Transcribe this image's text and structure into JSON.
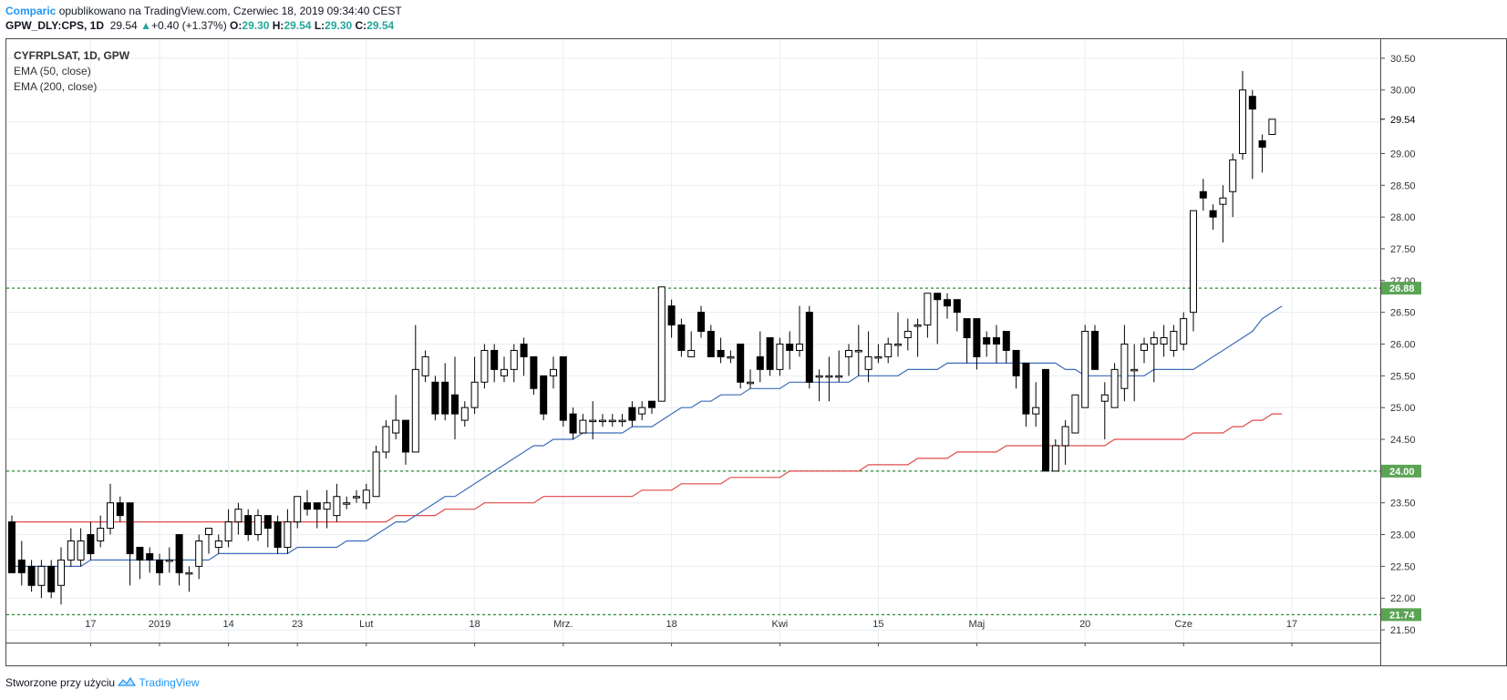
{
  "header": {
    "brand": "Comparic",
    "published": "opublikowano na TradingView.com, Czerwiec 18, 2019 09:34:40 CEST",
    "symbol": "GPW_DLY:CPS, 1D",
    "last": "29.54",
    "change_arrow": "▲",
    "change": "+0.40 (+1.37%)",
    "o_label": "O:",
    "o_value": "29.30",
    "h_label": "H:",
    "h_value": "29.54",
    "l_label": "L:",
    "l_value": "29.30",
    "c_label": "C:",
    "c_value": "29.54"
  },
  "legend": {
    "symbol": "CYFRPLSAT, 1D, GPW",
    "ema50": "EMA (50, close)",
    "ema200": "EMA (200, close)"
  },
  "footer": {
    "text": "Stworzone przy użyciu",
    "brand": "TradingView"
  },
  "colors": {
    "ema50": "#3d6cb9",
    "ema200": "#e04b4b",
    "level": "#2e8b2e",
    "level_badge": "#5aa454",
    "up_fill": "#ffffff",
    "down_fill": "#000000",
    "grid": "#e8eef3"
  },
  "chart_data": {
    "type": "candlestick",
    "ylim": [
      21.3,
      30.8
    ],
    "y_ticks": [
      21.5,
      22.0,
      22.5,
      23.0,
      23.5,
      24.0,
      24.5,
      25.0,
      25.5,
      26.0,
      26.5,
      27.0,
      27.5,
      28.0,
      28.5,
      29.0,
      29.5,
      30.0,
      30.5
    ],
    "x_ticks": [
      {
        "label": "17",
        "bar": 8
      },
      {
        "label": "2019",
        "bar": 15
      },
      {
        "label": "14",
        "bar": 22
      },
      {
        "label": "23",
        "bar": 29
      },
      {
        "label": "Lut",
        "bar": 36
      },
      {
        "label": "18",
        "bar": 47
      },
      {
        "label": "Mrz.",
        "bar": 56
      },
      {
        "label": "18",
        "bar": 67
      },
      {
        "label": "Kwi",
        "bar": 78
      },
      {
        "label": "15",
        "bar": 88
      },
      {
        "label": "Maj",
        "bar": 98
      },
      {
        "label": "20",
        "bar": 109
      },
      {
        "label": "Cze",
        "bar": 119
      },
      {
        "label": "17",
        "bar": 130
      }
    ],
    "last_price": 29.54,
    "levels": [
      26.88,
      24.0,
      21.74
    ],
    "candles": [
      [
        23.2,
        22.4,
        22.4,
        23.3
      ],
      [
        22.6,
        22.4,
        22.2,
        22.9
      ],
      [
        22.5,
        22.2,
        22.1,
        22.6
      ],
      [
        22.2,
        22.5,
        22.0,
        22.6
      ],
      [
        22.5,
        22.1,
        22.0,
        22.6
      ],
      [
        22.2,
        22.6,
        21.9,
        22.8
      ],
      [
        22.6,
        22.9,
        22.5,
        23.1
      ],
      [
        22.6,
        22.9,
        22.5,
        23.1
      ],
      [
        23.0,
        22.7,
        22.6,
        23.2
      ],
      [
        22.9,
        23.1,
        22.8,
        23.3
      ],
      [
        23.1,
        23.5,
        23.0,
        23.8
      ],
      [
        23.5,
        23.3,
        23.2,
        23.6
      ],
      [
        23.5,
        22.7,
        22.2,
        23.5
      ],
      [
        22.8,
        22.6,
        22.3,
        22.8
      ],
      [
        22.7,
        22.6,
        22.4,
        22.8
      ],
      [
        22.6,
        22.4,
        22.2,
        22.7
      ],
      [
        22.6,
        22.6,
        22.4,
        22.8
      ],
      [
        23.0,
        22.4,
        22.2,
        23.0
      ],
      [
        22.4,
        22.4,
        22.1,
        22.5
      ],
      [
        22.5,
        22.9,
        22.3,
        23.0
      ],
      [
        23.0,
        23.1,
        22.7,
        23.1
      ],
      [
        22.8,
        22.9,
        22.7,
        23.0
      ],
      [
        22.9,
        23.2,
        22.8,
        23.4
      ],
      [
        23.2,
        23.4,
        23.0,
        23.5
      ],
      [
        23.3,
        23.0,
        22.9,
        23.4
      ],
      [
        23.0,
        23.3,
        22.9,
        23.4
      ],
      [
        23.3,
        23.1,
        22.8,
        23.3
      ],
      [
        23.2,
        22.8,
        22.7,
        23.3
      ],
      [
        22.8,
        23.2,
        22.7,
        23.4
      ],
      [
        23.2,
        23.6,
        23.1,
        23.6
      ],
      [
        23.5,
        23.4,
        23.3,
        23.7
      ],
      [
        23.5,
        23.4,
        23.1,
        23.5
      ],
      [
        23.4,
        23.5,
        23.1,
        23.7
      ],
      [
        23.3,
        23.6,
        23.2,
        23.8
      ],
      [
        23.5,
        23.5,
        23.4,
        23.6
      ],
      [
        23.6,
        23.6,
        23.5,
        23.7
      ],
      [
        23.5,
        23.7,
        23.4,
        23.8
      ],
      [
        23.6,
        24.3,
        23.6,
        24.4
      ],
      [
        24.3,
        24.7,
        24.2,
        24.8
      ],
      [
        24.6,
        24.8,
        24.5,
        25.2
      ],
      [
        24.8,
        24.3,
        24.1,
        24.8
      ],
      [
        24.3,
        25.6,
        24.3,
        26.3
      ],
      [
        25.5,
        25.8,
        25.4,
        25.9
      ],
      [
        25.4,
        24.9,
        24.8,
        25.5
      ],
      [
        25.4,
        24.9,
        24.8,
        25.7
      ],
      [
        25.2,
        24.9,
        24.5,
        25.8
      ],
      [
        24.8,
        25.0,
        24.7,
        25.1
      ],
      [
        25.0,
        25.4,
        24.9,
        25.8
      ],
      [
        25.4,
        25.9,
        25.3,
        26.0
      ],
      [
        25.9,
        25.6,
        25.4,
        26.0
      ],
      [
        25.5,
        25.6,
        25.4,
        25.8
      ],
      [
        25.6,
        25.9,
        25.4,
        26.0
      ],
      [
        26.0,
        25.8,
        25.5,
        26.1
      ],
      [
        25.8,
        25.3,
        25.2,
        25.8
      ],
      [
        25.5,
        24.9,
        24.8,
        25.5
      ],
      [
        25.5,
        25.6,
        25.3,
        25.8
      ],
      [
        25.8,
        24.8,
        24.7,
        25.8
      ],
      [
        24.9,
        24.6,
        24.5,
        25.0
      ],
      [
        24.6,
        24.8,
        24.6,
        24.9
      ],
      [
        24.8,
        24.8,
        24.5,
        25.1
      ],
      [
        24.8,
        24.8,
        24.7,
        24.9
      ],
      [
        24.8,
        24.8,
        24.7,
        24.9
      ],
      [
        24.8,
        24.8,
        24.7,
        24.9
      ],
      [
        25.0,
        24.8,
        24.7,
        25.1
      ],
      [
        24.9,
        25.0,
        24.8,
        25.1
      ],
      [
        25.1,
        25.0,
        24.9,
        25.1
      ],
      [
        25.1,
        26.9,
        25.1,
        26.9
      ],
      [
        26.6,
        26.3,
        26.1,
        26.7
      ],
      [
        26.3,
        25.9,
        25.8,
        26.4
      ],
      [
        25.8,
        25.9,
        25.8,
        26.2
      ],
      [
        26.5,
        26.2,
        26.1,
        26.6
      ],
      [
        26.2,
        25.8,
        25.8,
        26.3
      ],
      [
        25.9,
        25.8,
        25.7,
        26.1
      ],
      [
        25.8,
        25.8,
        25.7,
        25.9
      ],
      [
        26.0,
        25.4,
        25.3,
        26.0
      ],
      [
        25.4,
        25.4,
        25.3,
        25.6
      ],
      [
        25.8,
        25.6,
        25.4,
        26.2
      ],
      [
        26.1,
        25.6,
        25.5,
        26.1
      ],
      [
        25.6,
        26.0,
        25.5,
        26.1
      ],
      [
        26.0,
        25.9,
        25.6,
        26.2
      ],
      [
        25.9,
        26.0,
        25.8,
        26.6
      ],
      [
        26.5,
        25.4,
        25.3,
        26.6
      ],
      [
        25.5,
        25.5,
        25.1,
        25.6
      ],
      [
        25.5,
        25.5,
        25.1,
        25.8
      ],
      [
        25.5,
        25.5,
        25.4,
        25.9
      ],
      [
        25.8,
        25.9,
        25.5,
        26.0
      ],
      [
        25.9,
        25.9,
        25.5,
        26.3
      ],
      [
        25.6,
        25.8,
        25.4,
        26.2
      ],
      [
        25.8,
        25.8,
        25.7,
        26.0
      ],
      [
        25.8,
        26.0,
        25.7,
        26.1
      ],
      [
        26.0,
        26.0,
        25.8,
        26.5
      ],
      [
        26.1,
        26.2,
        25.9,
        26.4
      ],
      [
        26.3,
        26.3,
        25.8,
        26.4
      ],
      [
        26.3,
        26.8,
        26.1,
        26.8
      ],
      [
        26.8,
        26.7,
        26.0,
        26.8
      ],
      [
        26.7,
        26.6,
        26.4,
        26.8
      ],
      [
        26.7,
        26.5,
        26.2,
        26.7
      ],
      [
        26.4,
        26.1,
        25.7,
        26.4
      ],
      [
        26.4,
        25.8,
        25.6,
        26.4
      ],
      [
        26.1,
        26.0,
        25.8,
        26.2
      ],
      [
        26.1,
        26.0,
        25.7,
        26.3
      ],
      [
        26.2,
        25.9,
        25.7,
        26.2
      ],
      [
        25.9,
        25.5,
        25.3,
        25.9
      ],
      [
        25.7,
        24.9,
        24.7,
        25.7
      ],
      [
        24.9,
        25.0,
        24.7,
        25.4
      ],
      [
        25.6,
        24.0,
        24.0,
        25.6
      ],
      [
        24.0,
        24.4,
        24.0,
        24.5
      ],
      [
        24.4,
        24.7,
        24.1,
        24.8
      ],
      [
        24.6,
        25.2,
        24.6,
        25.2
      ],
      [
        25.0,
        26.2,
        25.0,
        26.3
      ],
      [
        26.2,
        25.6,
        25.6,
        26.3
      ],
      [
        25.1,
        25.2,
        24.5,
        25.4
      ],
      [
        25.0,
        25.6,
        25.0,
        25.7
      ],
      [
        25.3,
        26.0,
        25.1,
        26.3
      ],
      [
        25.6,
        25.6,
        25.1,
        26.0
      ],
      [
        25.9,
        26.0,
        25.7,
        26.1
      ],
      [
        26.0,
        26.1,
        25.4,
        26.2
      ],
      [
        26.0,
        26.1,
        25.8,
        26.3
      ],
      [
        25.9,
        26.2,
        25.8,
        26.3
      ],
      [
        26.0,
        26.4,
        25.9,
        26.5
      ],
      [
        26.5,
        28.1,
        26.2,
        28.1
      ],
      [
        28.4,
        28.3,
        28.1,
        28.6
      ],
      [
        28.1,
        28.0,
        27.8,
        28.2
      ],
      [
        28.2,
        28.3,
        27.6,
        28.5
      ],
      [
        28.4,
        28.9,
        28.0,
        29.0
      ],
      [
        29.0,
        30.0,
        28.9,
        30.3
      ],
      [
        29.9,
        29.7,
        28.6,
        30.0
      ],
      [
        29.2,
        29.1,
        28.7,
        29.3
      ],
      [
        29.3,
        29.54,
        29.3,
        29.54
      ]
    ],
    "series": [
      {
        "name": "EMA (50, close)",
        "values": [
          22.5,
          22.5,
          22.5,
          22.5,
          22.5,
          22.5,
          22.5,
          22.5,
          22.6,
          22.6,
          22.6,
          22.6,
          22.6,
          22.6,
          22.6,
          22.6,
          22.6,
          22.6,
          22.6,
          22.6,
          22.6,
          22.7,
          22.7,
          22.7,
          22.7,
          22.7,
          22.7,
          22.7,
          22.7,
          22.8,
          22.8,
          22.8,
          22.8,
          22.8,
          22.9,
          22.9,
          22.9,
          23.0,
          23.1,
          23.2,
          23.2,
          23.3,
          23.4,
          23.5,
          23.6,
          23.6,
          23.7,
          23.8,
          23.9,
          24.0,
          24.1,
          24.2,
          24.3,
          24.4,
          24.4,
          24.5,
          24.5,
          24.5,
          24.6,
          24.6,
          24.6,
          24.6,
          24.6,
          24.7,
          24.7,
          24.7,
          24.8,
          24.9,
          25.0,
          25.0,
          25.1,
          25.1,
          25.2,
          25.2,
          25.2,
          25.3,
          25.3,
          25.3,
          25.3,
          25.4,
          25.4,
          25.4,
          25.4,
          25.4,
          25.4,
          25.4,
          25.5,
          25.5,
          25.5,
          25.5,
          25.5,
          25.6,
          25.6,
          25.6,
          25.6,
          25.7,
          25.7,
          25.7,
          25.7,
          25.7,
          25.7,
          25.7,
          25.7,
          25.7,
          25.7,
          25.7,
          25.7,
          25.6,
          25.6,
          25.5,
          25.5,
          25.5,
          25.5,
          25.5,
          25.5,
          25.5,
          25.6,
          25.6,
          25.6,
          25.6,
          25.6,
          25.7,
          25.8,
          25.9,
          26.0,
          26.1,
          26.2,
          26.4,
          26.5,
          26.6
        ]
      },
      {
        "name": "EMA (200, close)",
        "values": [
          23.2,
          23.2,
          23.2,
          23.2,
          23.2,
          23.2,
          23.2,
          23.2,
          23.2,
          23.2,
          23.2,
          23.2,
          23.2,
          23.2,
          23.2,
          23.2,
          23.2,
          23.2,
          23.2,
          23.2,
          23.2,
          23.2,
          23.2,
          23.2,
          23.2,
          23.2,
          23.2,
          23.2,
          23.2,
          23.2,
          23.2,
          23.2,
          23.2,
          23.2,
          23.2,
          23.2,
          23.2,
          23.2,
          23.2,
          23.3,
          23.3,
          23.3,
          23.3,
          23.3,
          23.4,
          23.4,
          23.4,
          23.4,
          23.5,
          23.5,
          23.5,
          23.5,
          23.5,
          23.5,
          23.6,
          23.6,
          23.6,
          23.6,
          23.6,
          23.6,
          23.6,
          23.6,
          23.6,
          23.6,
          23.7,
          23.7,
          23.7,
          23.7,
          23.8,
          23.8,
          23.8,
          23.8,
          23.8,
          23.9,
          23.9,
          23.9,
          23.9,
          23.9,
          23.9,
          24.0,
          24.0,
          24.0,
          24.0,
          24.0,
          24.0,
          24.0,
          24.0,
          24.1,
          24.1,
          24.1,
          24.1,
          24.1,
          24.2,
          24.2,
          24.2,
          24.2,
          24.3,
          24.3,
          24.3,
          24.3,
          24.3,
          24.4,
          24.4,
          24.4,
          24.4,
          24.4,
          24.4,
          24.4,
          24.4,
          24.4,
          24.4,
          24.4,
          24.5,
          24.5,
          24.5,
          24.5,
          24.5,
          24.5,
          24.5,
          24.5,
          24.6,
          24.6,
          24.6,
          24.6,
          24.7,
          24.7,
          24.8,
          24.8,
          24.9,
          24.9
        ]
      }
    ]
  }
}
